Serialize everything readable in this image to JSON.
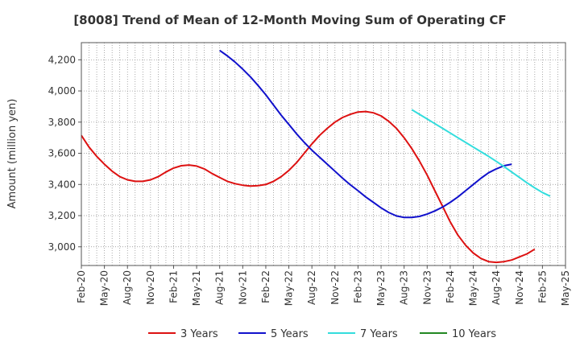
{
  "chart_data": {
    "type": "line",
    "title": "[8008]  Trend of Mean of 12-Month Moving Sum of Operating CF",
    "xlabel": "",
    "ylabel": "Amount (million yen)",
    "ylim": [
      2880,
      4310
    ],
    "yticks": [
      3000,
      3200,
      3400,
      3600,
      3800,
      4000,
      4200
    ],
    "ytick_labels": [
      "3,000",
      "3,200",
      "3,400",
      "3,600",
      "3,800",
      "4,000",
      "4,200"
    ],
    "x_tick_labels": [
      "Feb-20",
      "May-20",
      "Aug-20",
      "Nov-20",
      "Feb-21",
      "May-21",
      "Aug-21",
      "Nov-21",
      "Feb-22",
      "May-22",
      "Aug-22",
      "Nov-22",
      "Feb-23",
      "May-23",
      "Aug-23",
      "Nov-23",
      "Feb-24",
      "May-24",
      "Aug-24",
      "Nov-24",
      "Feb-25",
      "May-25"
    ],
    "grid": true,
    "legend_position": "bottom",
    "series": [
      {
        "name": "3 Years",
        "color": "#dd1111",
        "points": [
          [
            0,
            3715
          ],
          [
            1,
            3640
          ],
          [
            2,
            3580
          ],
          [
            3,
            3530
          ],
          [
            4,
            3485
          ],
          [
            5,
            3450
          ],
          [
            6,
            3430
          ],
          [
            7,
            3420
          ],
          [
            8,
            3420
          ],
          [
            9,
            3430
          ],
          [
            10,
            3450
          ],
          [
            11,
            3480
          ],
          [
            12,
            3505
          ],
          [
            13,
            3520
          ],
          [
            14,
            3525
          ],
          [
            15,
            3518
          ],
          [
            16,
            3500
          ],
          [
            17,
            3470
          ],
          [
            18,
            3445
          ],
          [
            19,
            3420
          ],
          [
            20,
            3405
          ],
          [
            21,
            3395
          ],
          [
            22,
            3390
          ],
          [
            23,
            3392
          ],
          [
            24,
            3400
          ],
          [
            25,
            3420
          ],
          [
            26,
            3450
          ],
          [
            27,
            3490
          ],
          [
            28,
            3540
          ],
          [
            29,
            3600
          ],
          [
            30,
            3660
          ],
          [
            31,
            3715
          ],
          [
            32,
            3760
          ],
          [
            33,
            3800
          ],
          [
            34,
            3830
          ],
          [
            35,
            3850
          ],
          [
            36,
            3865
          ],
          [
            37,
            3868
          ],
          [
            38,
            3860
          ],
          [
            39,
            3840
          ],
          [
            40,
            3805
          ],
          [
            41,
            3760
          ],
          [
            42,
            3700
          ],
          [
            43,
            3630
          ],
          [
            44,
            3550
          ],
          [
            45,
            3460
          ],
          [
            46,
            3360
          ],
          [
            47,
            3260
          ],
          [
            48,
            3160
          ],
          [
            49,
            3075
          ],
          [
            50,
            3010
          ],
          [
            51,
            2960
          ],
          [
            52,
            2925
          ],
          [
            53,
            2905
          ],
          [
            54,
            2900
          ],
          [
            55,
            2905
          ],
          [
            56,
            2915
          ],
          [
            57,
            2935
          ],
          [
            58,
            2955
          ],
          [
            59,
            2985
          ]
        ]
      },
      {
        "name": "5 Years",
        "color": "#1111cc",
        "points": [
          [
            18,
            4260
          ],
          [
            19,
            4225
          ],
          [
            20,
            4185
          ],
          [
            21,
            4140
          ],
          [
            22,
            4090
          ],
          [
            23,
            4035
          ],
          [
            24,
            3975
          ],
          [
            25,
            3910
          ],
          [
            26,
            3845
          ],
          [
            27,
            3785
          ],
          [
            28,
            3725
          ],
          [
            29,
            3670
          ],
          [
            30,
            3620
          ],
          [
            31,
            3575
          ],
          [
            32,
            3530
          ],
          [
            33,
            3485
          ],
          [
            34,
            3440
          ],
          [
            35,
            3398
          ],
          [
            36,
            3360
          ],
          [
            37,
            3320
          ],
          [
            38,
            3285
          ],
          [
            39,
            3250
          ],
          [
            40,
            3220
          ],
          [
            41,
            3198
          ],
          [
            42,
            3188
          ],
          [
            43,
            3188
          ],
          [
            44,
            3195
          ],
          [
            45,
            3210
          ],
          [
            46,
            3230
          ],
          [
            47,
            3255
          ],
          [
            48,
            3285
          ],
          [
            49,
            3320
          ],
          [
            50,
            3360
          ],
          [
            51,
            3400
          ],
          [
            52,
            3440
          ],
          [
            53,
            3475
          ],
          [
            54,
            3500
          ],
          [
            55,
            3520
          ],
          [
            56,
            3530
          ]
        ]
      },
      {
        "name": "7 Years",
        "color": "#33dddd",
        "points": [
          [
            43,
            3880
          ],
          [
            44,
            3850
          ],
          [
            45,
            3820
          ],
          [
            46,
            3790
          ],
          [
            47,
            3760
          ],
          [
            48,
            3730
          ],
          [
            49,
            3700
          ],
          [
            50,
            3670
          ],
          [
            51,
            3640
          ],
          [
            52,
            3610
          ],
          [
            53,
            3580
          ],
          [
            54,
            3548
          ],
          [
            55,
            3515
          ],
          [
            56,
            3480
          ],
          [
            57,
            3445
          ],
          [
            58,
            3410
          ],
          [
            59,
            3378
          ],
          [
            60,
            3348
          ],
          [
            61,
            3325
          ]
        ]
      },
      {
        "name": "10 Years",
        "color": "#228822",
        "points": []
      }
    ]
  }
}
